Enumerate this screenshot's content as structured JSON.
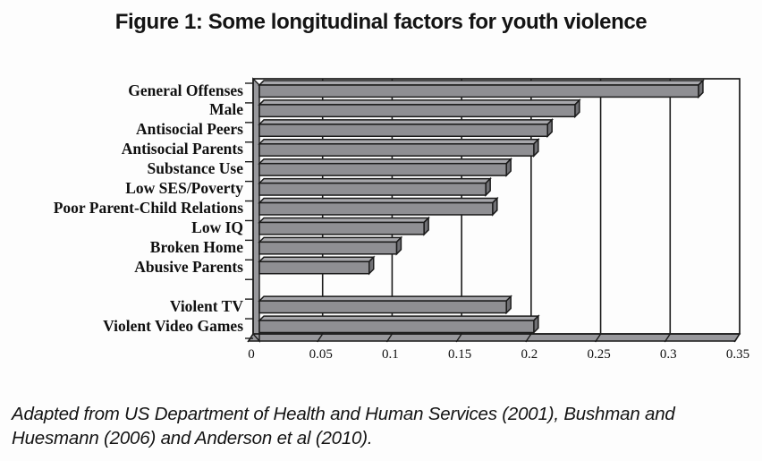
{
  "title": "Figure 1: Some longitudinal factors for youth violence",
  "caption": {
    "line1": "Adapted from US Department of Health and Human Services (2001), Bushman and",
    "line2": "Huesmann (2006) and Anderson et al (2010)."
  },
  "colors": {
    "background": "#fdfdfd",
    "bar_front": "#8f8f93",
    "bar_top": "#a7a7ab",
    "bar_end": "#707074",
    "wall": "#98989c",
    "floor": "#98989c",
    "outline": "#1b1b1b",
    "text": "#141414"
  },
  "chart_data": {
    "type": "bar",
    "orientation": "horizontal",
    "style": "3d-beveled-bars",
    "title": "Figure 1: Some longitudinal factors for youth violence",
    "categories": [
      "General Offenses",
      "Male",
      "Antisocial Peers",
      "Antisocial Parents",
      "Substance Use",
      "Low SES/Poverty",
      "Poor Parent-Child Relations",
      "Low IQ",
      "Broken Home",
      "Abusive Parents",
      "",
      "Violent TV",
      "Violent Video Games"
    ],
    "values": [
      0.32,
      0.23,
      0.21,
      0.2,
      0.18,
      0.165,
      0.17,
      0.12,
      0.1,
      0.08,
      null,
      0.18,
      0.2
    ],
    "xlabel": "",
    "ylabel": "",
    "xlim": [
      0,
      0.35
    ],
    "x_ticks": [
      0,
      0.05,
      0.1,
      0.15,
      0.2,
      0.25,
      0.3,
      0.35
    ],
    "x_tick_labels": [
      "0",
      "0.05",
      "0.1",
      "0.15",
      "0.2",
      "0.25",
      "0.3",
      "0.35"
    ],
    "grid": "vertical-gridlines-every-0.05",
    "legend": "none"
  }
}
